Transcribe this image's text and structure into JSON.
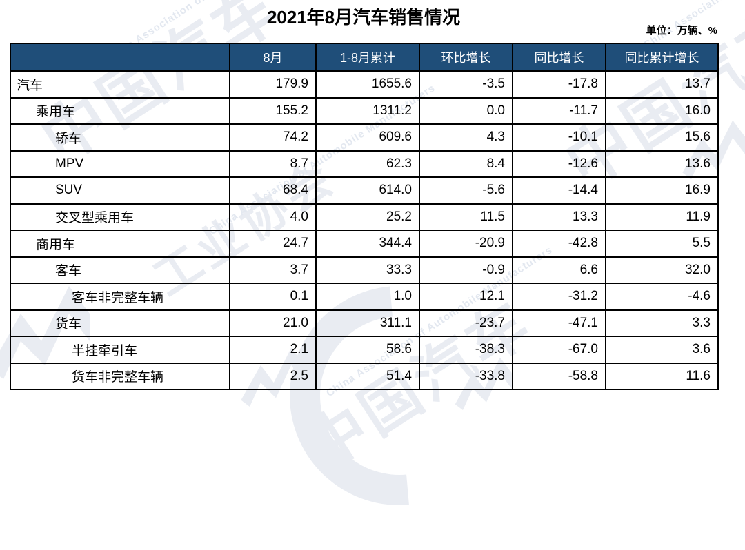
{
  "title": "2021年8月汽车销售情况",
  "unit_label": "单位：万辆、%",
  "chart_data": {
    "type": "table",
    "title": "2021年8月汽车销售情况",
    "unit": "万辆、%",
    "columns": [
      "",
      "8月",
      "1-8月累计",
      "环比增长",
      "同比增长",
      "同比累计增长"
    ],
    "rows": [
      {
        "label": "汽车",
        "level": 0,
        "bg": "blue",
        "values": [
          "179.9",
          "1655.6",
          "-3.5",
          "-17.8",
          "13.7"
        ]
      },
      {
        "label": "乘用车",
        "level": 1,
        "bg": "gray",
        "values": [
          "155.2",
          "1311.2",
          "0.0",
          "-11.7",
          "16.0"
        ]
      },
      {
        "label": "轿车",
        "level": 2,
        "bg": "white",
        "values": [
          "74.2",
          "609.6",
          "4.3",
          "-10.1",
          "15.6"
        ]
      },
      {
        "label": "MPV",
        "level": 2,
        "bg": "white",
        "values": [
          "8.7",
          "62.3",
          "8.4",
          "-12.6",
          "13.6"
        ]
      },
      {
        "label": "SUV",
        "level": 2,
        "bg": "white",
        "values": [
          "68.4",
          "614.0",
          "-5.6",
          "-14.4",
          "16.9"
        ]
      },
      {
        "label": "交叉型乘用车",
        "level": 2,
        "bg": "white",
        "values": [
          "4.0",
          "25.2",
          "11.5",
          "13.3",
          "11.9"
        ]
      },
      {
        "label": "商用车",
        "level": 1,
        "bg": "gray",
        "values": [
          "24.7",
          "344.4",
          "-20.9",
          "-42.8",
          "5.5"
        ]
      },
      {
        "label": "客车",
        "level": 2,
        "bg": "white",
        "values": [
          "3.7",
          "33.3",
          "-0.9",
          "6.6",
          "32.0"
        ]
      },
      {
        "label": "客车非完整车辆",
        "level": 3,
        "bg": "white",
        "values": [
          "0.1",
          "1.0",
          "12.1",
          "-31.2",
          "-4.6"
        ]
      },
      {
        "label": "货车",
        "level": 2,
        "bg": "white",
        "values": [
          "21.0",
          "311.1",
          "-23.7",
          "-47.1",
          "3.3"
        ]
      },
      {
        "label": "半挂牵引车",
        "level": 3,
        "bg": "white",
        "values": [
          "2.1",
          "58.6",
          "-38.3",
          "-67.0",
          "3.6"
        ]
      },
      {
        "label": "货车非完整车辆",
        "level": 3,
        "bg": "white",
        "values": [
          "2.5",
          "51.4",
          "-33.8",
          "-58.8",
          "11.6"
        ]
      }
    ]
  },
  "watermark": {
    "cn_full": "中国汽车工业协会",
    "cn_part1": "中国汽车",
    "cn_part2": "工业协会",
    "en": "China Association of Automobile Manufacturers"
  },
  "colors": {
    "header_bg": "#1F4E79",
    "header_text": "#FFFFFF",
    "highlight_blue": "#BDD7EE",
    "highlight_gray": "#D9D9D9",
    "border": "#000000",
    "title_text": "#000000",
    "watermark": "#E9ECF2"
  }
}
